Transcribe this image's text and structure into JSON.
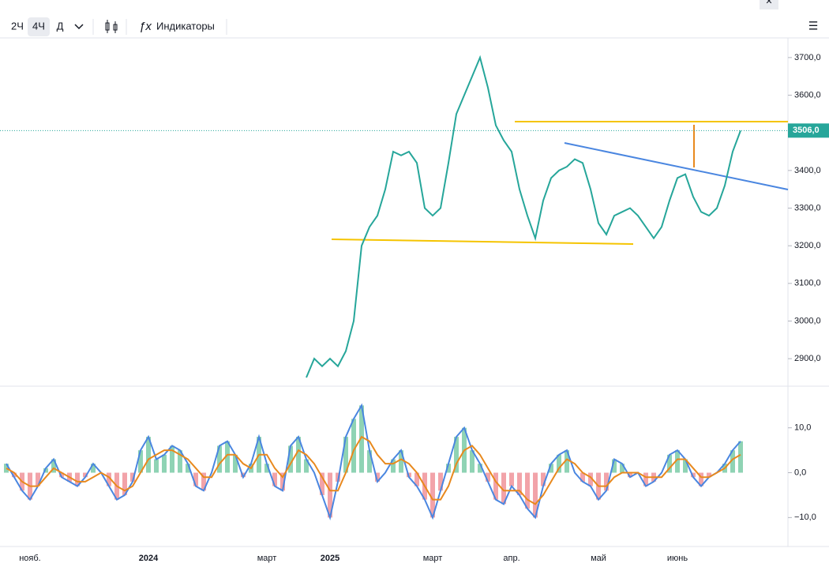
{
  "toolbar": {
    "intervals": [
      "2Ч",
      "4Ч",
      "Д"
    ],
    "indicators": "Индикаторы"
  },
  "chart_data": [
    {
      "type": "line",
      "name": "price",
      "categories": [
        null,
        null,
        null,
        "нояб.",
        null,
        null,
        null,
        null,
        null,
        null,
        null,
        null,
        null,
        null,
        null,
        null,
        null,
        null,
        "2024",
        null,
        null,
        null,
        null,
        null,
        null,
        null,
        null,
        null,
        null,
        null,
        null,
        null,
        null,
        "март",
        null,
        null,
        null,
        null,
        null,
        null,
        null,
        "2025",
        null,
        null,
        null,
        null,
        null,
        null,
        null,
        null,
        null,
        null,
        null,
        null,
        "март",
        null,
        null,
        null,
        null,
        null,
        null,
        null,
        null,
        null,
        "апр.",
        null,
        null,
        null,
        null,
        null,
        null,
        null,
        null,
        null,
        null,
        "май",
        null,
        null,
        null,
        null,
        null,
        null,
        null,
        null,
        null,
        "июнь",
        null,
        null,
        null,
        null,
        null,
        null,
        null,
        null
      ],
      "series": [
        {
          "color": "#26a69a",
          "values": [
            null,
            null,
            null,
            null,
            null,
            null,
            null,
            null,
            null,
            null,
            null,
            null,
            null,
            null,
            null,
            null,
            null,
            null,
            null,
            null,
            null,
            null,
            null,
            null,
            null,
            null,
            null,
            null,
            null,
            null,
            null,
            null,
            null,
            null,
            null,
            null,
            null,
            null,
            2850,
            2900,
            2880,
            2900,
            2880,
            2920,
            3000,
            3200,
            3250,
            3280,
            3350,
            3450,
            3440,
            3450,
            3420,
            3300,
            3280,
            3300,
            3420,
            3550,
            3600,
            3650,
            3700,
            3620,
            3520,
            3480,
            3450,
            3350,
            3280,
            3220,
            3320,
            3380,
            3400,
            3410,
            3430,
            3420,
            3350,
            3260,
            3230,
            3280,
            3290,
            3300,
            3280,
            3250,
            3220,
            3250,
            3320,
            3380,
            3390,
            3330,
            3290,
            3280,
            3300,
            3360,
            3450,
            3506
          ]
        }
      ],
      "ylim": [
        2829,
        3748
      ],
      "yticks": [
        {
          "value": 3700,
          "label": "3700,0"
        },
        {
          "value": 3600,
          "label": "3600,0"
        },
        {
          "value": 3500,
          "label": "3500,0"
        },
        {
          "value": 3400,
          "label": "3400,0"
        },
        {
          "value": 3300,
          "label": "3300,0"
        },
        {
          "value": 3200,
          "label": "3200,0"
        },
        {
          "value": 3100,
          "label": "3100,0"
        },
        {
          "value": 3000,
          "label": "3000,0"
        },
        {
          "value": 2900,
          "label": "2900,0"
        }
      ],
      "last_price": {
        "value": 3506,
        "label": "3506,0"
      }
    },
    {
      "type": "line",
      "name": "oscillator",
      "series": [
        {
          "color": "#4a86e0",
          "values": [
            2,
            -1,
            -4,
            -6,
            -3,
            1,
            3,
            -1,
            -2,
            -3,
            -1,
            2,
            0,
            -3,
            -6,
            -5,
            -2,
            5,
            8,
            3,
            4,
            6,
            5,
            2,
            -3,
            -4,
            0,
            6,
            7,
            4,
            -1,
            2,
            8,
            2,
            -3,
            -4,
            6,
            8,
            3,
            0,
            -5,
            -10,
            -2,
            8,
            12,
            15,
            5,
            -2,
            0,
            3,
            5,
            -1,
            -3,
            -6,
            -10,
            -4,
            2,
            8,
            10,
            5,
            2,
            -2,
            -6,
            -7,
            -3,
            -5,
            -8,
            -10,
            -3,
            2,
            4,
            5,
            0,
            -2,
            -3,
            -6,
            -4,
            3,
            2,
            -1,
            0,
            -3,
            -2,
            0,
            4,
            5,
            3,
            -1,
            -3,
            -1,
            0,
            2,
            5,
            7
          ]
        },
        {
          "color": "#e8891e",
          "values": [
            1,
            0,
            -2,
            -3,
            -3,
            -1,
            1,
            0,
            -1,
            -2,
            -2,
            -1,
            0,
            -1,
            -3,
            -4,
            -3,
            0,
            3,
            4,
            5,
            5,
            4,
            3,
            1,
            -1,
            -1,
            2,
            4,
            4,
            2,
            1,
            4,
            4,
            1,
            -1,
            2,
            5,
            4,
            2,
            -1,
            -4,
            -4,
            0,
            5,
            8,
            7,
            4,
            2,
            2,
            3,
            2,
            0,
            -3,
            -6,
            -6,
            -3,
            2,
            5,
            6,
            4,
            1,
            -2,
            -4,
            -4,
            -4,
            -6,
            -7,
            -5,
            -2,
            1,
            3,
            2,
            0,
            -1,
            -3,
            -3,
            -1,
            0,
            0,
            0,
            -1,
            -1,
            -1,
            1,
            3,
            3,
            1,
            -1,
            -1,
            0,
            1,
            3,
            4
          ]
        }
      ],
      "ylim": [
        -16.1,
        19.1
      ],
      "yticks": [
        {
          "value": 10,
          "label": "10,0"
        },
        {
          "value": 0,
          "label": "0,0"
        },
        {
          "value": -10,
          "label": "−10,0"
        }
      ]
    }
  ]
}
